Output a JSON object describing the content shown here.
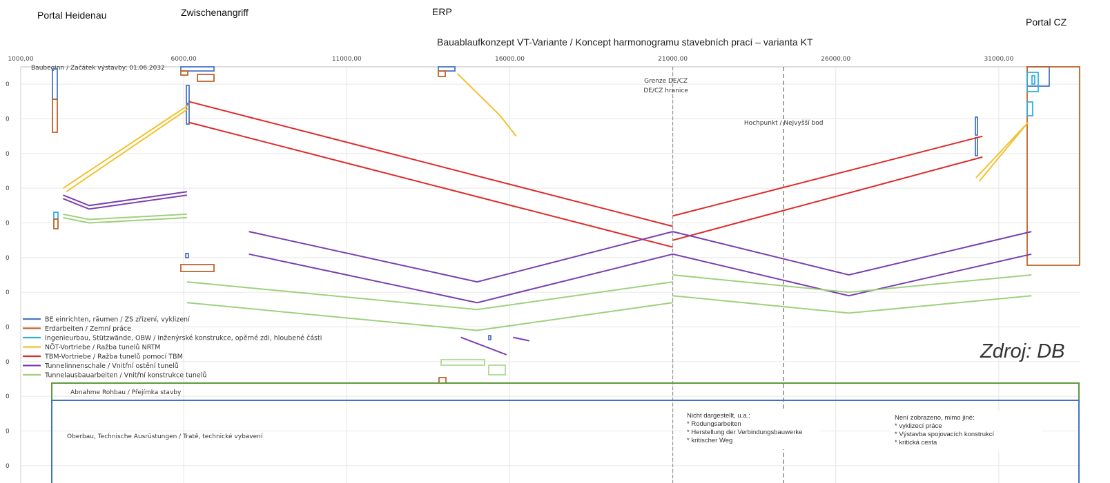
{
  "header": {
    "portal_left": "Portal Heidenau",
    "intermediate": "Zwischenangriff",
    "erp": "ERP",
    "portal_right": "Portal CZ"
  },
  "source_label": "Zdroj: DB",
  "chart_data": {
    "type": "line",
    "title": "Bauablaufkonzept VT-Variante / Koncept harmonogramu stavebních prací – varianta KT",
    "x_ticks": [
      "1000,00",
      "6000,00",
      "11000,00",
      "16000,00",
      "21000,00",
      "26000,00",
      "31000,00"
    ],
    "x_tick_values": [
      1000,
      6000,
      11000,
      16000,
      21000,
      26000,
      31000
    ],
    "xlim": [
      1000,
      33500
    ],
    "ylim": [
      0,
      12
    ],
    "y_tick_labels": [
      "0",
      "0",
      "0",
      "0",
      "0",
      "0",
      "0",
      "0",
      "0",
      "0",
      "0",
      "0"
    ],
    "annotations": {
      "start": "Baubeginn / Začátek výstavby: 01.06.2032",
      "border_de": "Grenze DE/CZ",
      "border_cz": "DE/CZ hranice",
      "high_point": "Hochpunkt / Nejvyšší bod",
      "acceptance": "Abnahme Rohbau / Přejímka stavby",
      "superstructure": "Oberbau, Technische Ausrüstungen / Tratě, technické vybavení",
      "not_shown_de": [
        "Nicht dargestellt, u.a.:",
        "* Rodungsarbeiten",
        "* Herstellung der Verbindungsbauwerke",
        "* kritischer Weg"
      ],
      "not_shown_cz": [
        "Není zobrazeno, mimo jiné:",
        "* vyklizecí práce",
        "* Výstavba spojovacích konstrukcí",
        "* kritická cesta"
      ]
    },
    "markers": {
      "border_x": 21000,
      "high_point_x": 24400
    },
    "legend": [
      {
        "label": "BE einrichten, räumen / ZS zřízení, vyklizení",
        "color": "#4a74c4"
      },
      {
        "label": "Erdarbeiten / Zemní práce",
        "color": "#c0632a"
      },
      {
        "label": "Ingenieurbau, Stützwände, OBW / Inženýrské konstrukce, opěrné zdi, hloubené části",
        "color": "#30b0e0"
      },
      {
        "label": "NÖT-Vortriebe / Ražba tunelů NRTM",
        "color": "#f2c12e"
      },
      {
        "label": "TBM-Vortriebe / Ražba tunelů pomocí TBM",
        "color": "#e02a2a"
      },
      {
        "label": "Tunnelinnenschale / Vnitřní ostění tunelů",
        "color": "#7a3fb0"
      },
      {
        "label": "Tunnelausbauarbeiten / Vnitřní konstrukce tunelů",
        "color": "#9fd07c"
      }
    ],
    "lines": [
      {
        "series": 4,
        "points": [
          [
            6150,
            1.0
          ],
          [
            21000,
            4.6
          ]
        ]
      },
      {
        "series": 4,
        "points": [
          [
            6150,
            1.6
          ],
          [
            21000,
            5.2
          ]
        ]
      },
      {
        "series": 4,
        "points": [
          [
            21000,
            4.3
          ],
          [
            30500,
            2.0
          ]
        ]
      },
      {
        "series": 4,
        "points": [
          [
            21000,
            5.0
          ],
          [
            30500,
            2.6
          ]
        ]
      },
      {
        "series": 3,
        "points": [
          [
            2300,
            3.5
          ],
          [
            6150,
            1.1
          ]
        ]
      },
      {
        "series": 3,
        "points": [
          [
            2400,
            3.6
          ],
          [
            6150,
            1.2
          ]
        ]
      },
      {
        "series": 3,
        "points": [
          [
            14400,
            0.2
          ],
          [
            15700,
            1.4
          ],
          [
            16200,
            2.0
          ]
        ]
      },
      {
        "series": 3,
        "points": [
          [
            30300,
            3.2
          ],
          [
            31800,
            1.7
          ]
        ]
      },
      {
        "series": 3,
        "points": [
          [
            30400,
            3.3
          ],
          [
            31900,
            1.6
          ]
        ]
      },
      {
        "series": 5,
        "points": [
          [
            2300,
            3.7
          ],
          [
            3100,
            4.0
          ],
          [
            6100,
            3.6
          ]
        ]
      },
      {
        "series": 5,
        "points": [
          [
            2300,
            3.8
          ],
          [
            3100,
            4.1
          ],
          [
            6100,
            3.7
          ]
        ]
      },
      {
        "series": 5,
        "points": [
          [
            8000,
            4.75
          ],
          [
            15000,
            6.2
          ],
          [
            21000,
            4.75
          ]
        ]
      },
      {
        "series": 5,
        "points": [
          [
            8000,
            5.4
          ],
          [
            15000,
            6.8
          ],
          [
            21000,
            5.4
          ]
        ]
      },
      {
        "series": 5,
        "points": [
          [
            21000,
            4.75
          ],
          [
            26400,
            6.0
          ],
          [
            32000,
            4.75
          ]
        ]
      },
      {
        "series": 5,
        "points": [
          [
            21000,
            5.4
          ],
          [
            26400,
            6.6
          ],
          [
            32000,
            5.4
          ]
        ]
      },
      {
        "series": 6,
        "points": [
          [
            2300,
            4.25
          ],
          [
            3100,
            4.4
          ],
          [
            6100,
            4.25
          ]
        ]
      },
      {
        "series": 6,
        "points": [
          [
            2300,
            4.35
          ],
          [
            3100,
            4.5
          ],
          [
            6100,
            4.35
          ]
        ]
      },
      {
        "series": 6,
        "points": [
          [
            6100,
            6.2
          ],
          [
            15000,
            7.0
          ],
          [
            21000,
            6.2
          ]
        ]
      },
      {
        "series": 6,
        "points": [
          [
            6100,
            6.8
          ],
          [
            15000,
            7.6
          ],
          [
            21000,
            6.8
          ]
        ]
      },
      {
        "series": 6,
        "points": [
          [
            21000,
            6.0
          ],
          [
            26400,
            6.5
          ],
          [
            32000,
            6.0
          ]
        ]
      },
      {
        "series": 6,
        "points": [
          [
            21000,
            6.6
          ],
          [
            26400,
            7.1
          ],
          [
            32000,
            6.6
          ]
        ]
      },
      {
        "series": 5,
        "points": [
          [
            14500,
            7.8
          ],
          [
            15900,
            8.3
          ]
        ]
      },
      {
        "series": 5,
        "points": [
          [
            16100,
            7.8
          ],
          [
            16600,
            7.9
          ]
        ]
      }
    ]
  }
}
